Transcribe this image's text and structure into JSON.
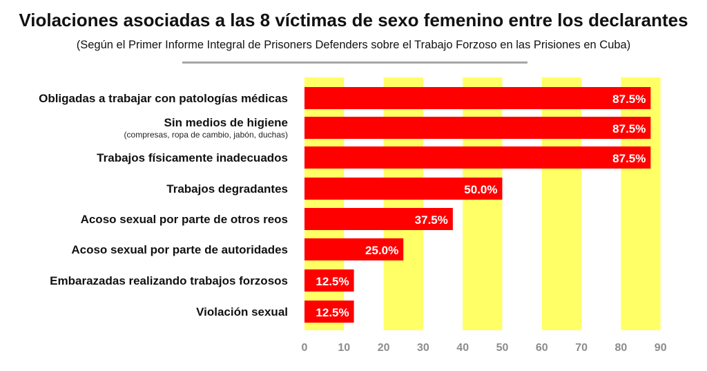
{
  "header": {
    "title": "Violaciones asociadas a las 8 víctimas de sexo femenino entre los declarantes",
    "subtitle": "(Según el Primer Informe Integral de Prisoners Defenders sobre el Trabajo Forzoso en las Prisiones en Cuba)"
  },
  "chart_data": {
    "type": "bar",
    "orientation": "horizontal",
    "title": "Violaciones asociadas a las 8 víctimas de sexo femenino entre los declarantes",
    "subtitle": "(Según el Primer Informe Integral de Prisoners Defenders sobre el Trabajo Forzoso en las Prisiones en Cuba)",
    "categories": [
      "Obligadas a trabajar con patologías médicas",
      "Sin medios de higiene",
      "Trabajos físicamente inadecuados",
      "Trabajos degradantes",
      "Acoso sexual por parte de otros reos",
      "Acoso sexual por parte de autoridades",
      "Embarazadas realizando trabajos forzosos",
      "Violación sexual"
    ],
    "category_notes": [
      "",
      "(compresas, ropa de cambio, jabón, duchas)",
      "",
      "",
      "",
      "",
      "",
      ""
    ],
    "values": [
      87.5,
      87.5,
      87.5,
      50.0,
      37.5,
      25.0,
      12.5,
      12.5
    ],
    "value_labels": [
      "87.5%",
      "87.5%",
      "87.5%",
      "50.0%",
      "37.5%",
      "25.0%",
      "12.5%",
      "12.5%"
    ],
    "xlim": [
      0,
      90
    ],
    "xticks": [
      0,
      10,
      20,
      30,
      40,
      50,
      60,
      70,
      80,
      90
    ],
    "xtick_labels": [
      "0",
      "10",
      "20",
      "30",
      "40",
      "50",
      "60",
      "70",
      "80",
      "90"
    ],
    "xlabel": "",
    "ylabel": "",
    "grid": "alternating vertical bands",
    "legend": "none",
    "colors": {
      "bar": "#ff0000",
      "band": "#ffff66",
      "value_text": "#ffffff",
      "tick_text": "#8c8c8c"
    }
  }
}
